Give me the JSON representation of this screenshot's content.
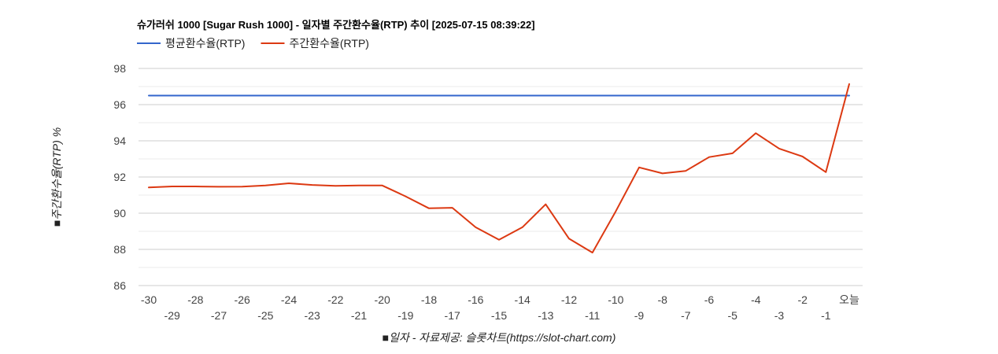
{
  "chart_data": {
    "type": "line",
    "title": "슈가러쉬 1000 [Sugar Rush 1000] - 일자별 주간환수율(RTP) 추이 [2025-07-15 08:39:22]",
    "xlabel": "■일자 - 자료제공: 슬롯차트(https://slot-chart.com)",
    "ylabel": "■주간환수율(RTP) %",
    "ylim": [
      86,
      98
    ],
    "yticks": [
      "86",
      "88",
      "90",
      "92",
      "94",
      "96",
      "98"
    ],
    "grid": true,
    "legend_position": "top-left",
    "categories": [
      "-30",
      "-29",
      "-28",
      "-27",
      "-26",
      "-25",
      "-24",
      "-23",
      "-22",
      "-21",
      "-20",
      "-19",
      "-18",
      "-17",
      "-16",
      "-15",
      "-14",
      "-13",
      "-12",
      "-11",
      "-10",
      "-9",
      "-8",
      "-7",
      "-6",
      "-5",
      "-4",
      "-3",
      "-2",
      "-1",
      "오늘"
    ],
    "series": [
      {
        "name": "평균환수율(RTP)",
        "color": "#3366cc",
        "values": [
          96.5,
          96.5,
          96.5,
          96.5,
          96.5,
          96.5,
          96.5,
          96.5,
          96.5,
          96.5,
          96.5,
          96.5,
          96.5,
          96.5,
          96.5,
          96.5,
          96.5,
          96.5,
          96.5,
          96.5,
          96.5,
          96.5,
          96.5,
          96.5,
          96.5,
          96.5,
          96.5,
          96.5,
          96.5,
          96.5,
          96.5
        ]
      },
      {
        "name": "주간환수율(RTP)",
        "color": "#dc3912",
        "values": [
          91.42,
          91.48,
          91.48,
          91.46,
          91.47,
          91.53,
          91.65,
          91.56,
          91.51,
          91.53,
          91.53,
          90.93,
          90.27,
          90.3,
          89.22,
          88.53,
          89.22,
          90.49,
          88.59,
          87.82,
          90.1,
          92.53,
          92.2,
          92.34,
          93.1,
          93.31,
          94.42,
          93.57,
          93.13,
          92.27,
          97.14
        ]
      }
    ]
  }
}
